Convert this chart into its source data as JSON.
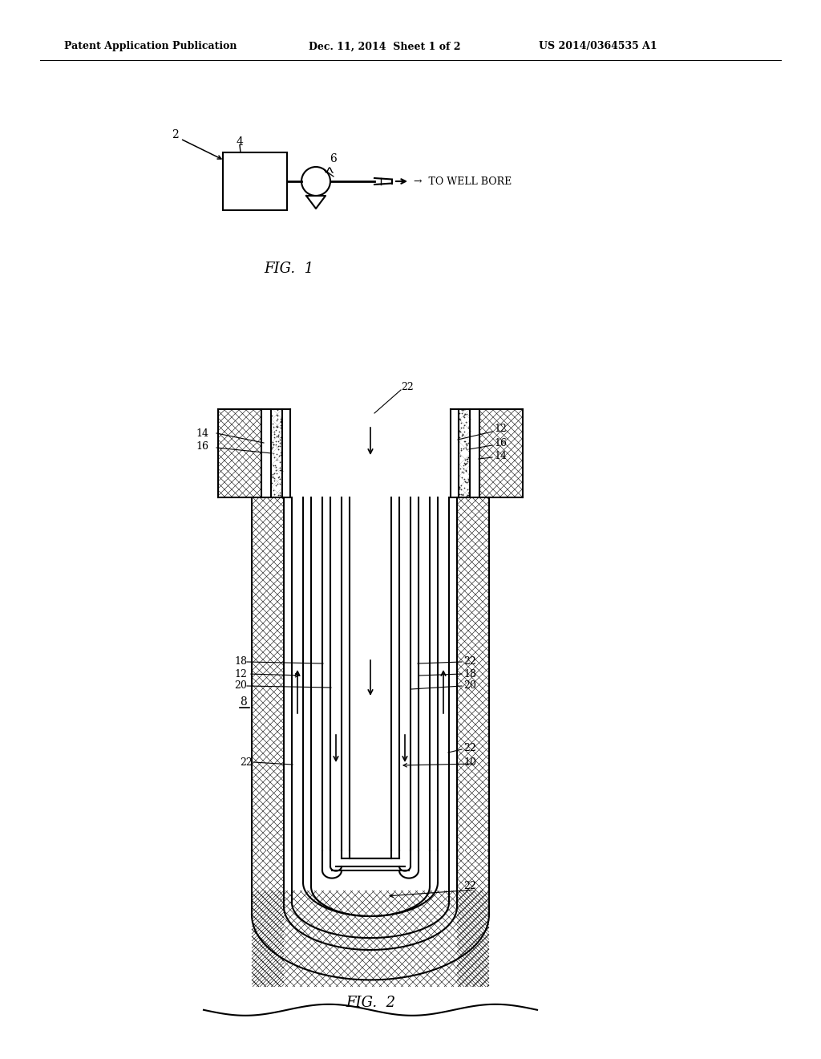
{
  "background_color": "#ffffff",
  "header_left": "Patent Application Publication",
  "header_center": "Dec. 11, 2014  Sheet 1 of 2",
  "header_right": "US 2014/0364535 A1",
  "fig1_caption": "FIG.  1",
  "fig2_caption": "FIG.  2",
  "line_color": "#000000",
  "hatch_color": "#000000"
}
